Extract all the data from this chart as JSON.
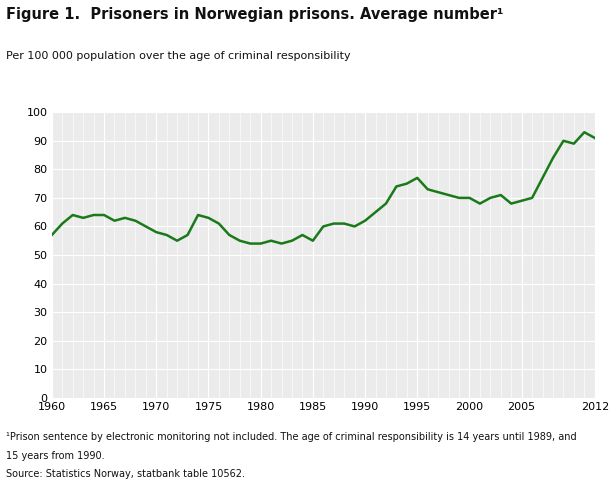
{
  "title": "Figure 1.  Prisoners in Norwegian prisons. Average number¹",
  "subtitle": "Per 100 000 population over the age of criminal responsibility",
  "footnote1": "¹Prison sentence by electronic monitoring not included. The age of criminal responsibility is 14 years until 1989, and",
  "footnote2": "15 years from 1990.",
  "footnote3": "Source: Statistics Norway, statbank table 10562.",
  "line_color": "#1a7a1a",
  "background_color": "#ffffff",
  "plot_background": "#ebebeb",
  "years": [
    1960,
    1961,
    1962,
    1963,
    1964,
    1965,
    1966,
    1967,
    1968,
    1969,
    1970,
    1971,
    1972,
    1973,
    1974,
    1975,
    1976,
    1977,
    1978,
    1979,
    1980,
    1981,
    1982,
    1983,
    1984,
    1985,
    1986,
    1987,
    1988,
    1989,
    1990,
    1991,
    1992,
    1993,
    1994,
    1995,
    1996,
    1997,
    1998,
    1999,
    2000,
    2001,
    2002,
    2003,
    2004,
    2005,
    2006,
    2007,
    2008,
    2009,
    2010,
    2011,
    2012
  ],
  "values": [
    57,
    61,
    64,
    63,
    64,
    64,
    62,
    63,
    62,
    60,
    58,
    57,
    55,
    57,
    64,
    63,
    61,
    57,
    55,
    54,
    54,
    55,
    54,
    55,
    57,
    55,
    60,
    61,
    61,
    60,
    62,
    65,
    68,
    74,
    75,
    77,
    73,
    72,
    71,
    70,
    70,
    68,
    70,
    71,
    68,
    69,
    70,
    77,
    84,
    90,
    89,
    93,
    91
  ],
  "xlim": [
    1960,
    2012
  ],
  "ylim": [
    0,
    100
  ],
  "xticks": [
    1960,
    1965,
    1970,
    1975,
    1980,
    1985,
    1990,
    1995,
    2000,
    2005,
    2012
  ],
  "yticks": [
    0,
    10,
    20,
    30,
    40,
    50,
    60,
    70,
    80,
    90,
    100
  ],
  "line_width": 1.8,
  "title_fontsize": 10.5,
  "subtitle_fontsize": 8,
  "footnote_fontsize": 7,
  "tick_fontsize": 8
}
